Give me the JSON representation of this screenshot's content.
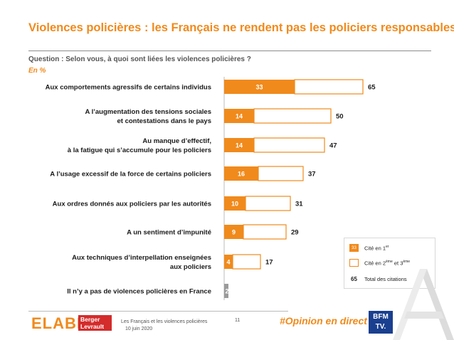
{
  "header": {
    "title": "Violences policières : les Français ne rendent pas les policiers responsables",
    "question": "Question : Selon vous, à quoi sont liées les violences policières ?",
    "unit": "En %"
  },
  "chart_data": {
    "type": "bar",
    "orientation": "horizontal",
    "stacked": true,
    "categories": [
      [
        "Aux comportements agressifs de certains individus"
      ],
      [
        "A l’augmentation des tensions sociales",
        "et contestations dans le pays"
      ],
      [
        "Au manque d’effectif,",
        "à la fatigue qui s’accumule pour les policiers"
      ],
      [
        "A l’usage excessif de la force de certains policiers"
      ],
      [
        "Aux ordres donnés aux policiers par les autorités"
      ],
      [
        "A un sentiment d’impunité"
      ],
      [
        "Aux techniques d’interpellation enseignées",
        "aux policiers"
      ],
      [
        "Il n’y a pas de violences policières en France"
      ]
    ],
    "series": [
      {
        "name": "Cité en 1er",
        "values": [
          33,
          14,
          14,
          16,
          10,
          9,
          4,
          2
        ],
        "color": "#f08a1c",
        "fill": "solid"
      },
      {
        "name": "Cité en 2ème et 3ème",
        "values": [
          32,
          36,
          33,
          21,
          21,
          20,
          13,
          0
        ],
        "color": "#f08a1c",
        "fill": "outline"
      }
    ],
    "totals": [
      65,
      50,
      47,
      37,
      31,
      29,
      17,
      null
    ],
    "legend_position": "bottom-right",
    "grid": false
  },
  "legend": {
    "first_sample": "33",
    "first_label": "Cité en 1er",
    "second_label": "Cité en 2ème et 3ème",
    "total_sample": "65",
    "total_label": "Total des citations"
  },
  "footer": {
    "logo_elabe": "ELABE",
    "logo_bl": "Berger Levrault",
    "study": "Les Français et les violences policières",
    "date": "10 juin 2020",
    "page": "11",
    "hashtag": "#Opinion en direct",
    "logo_bfm": "BFM TV."
  },
  "colors": {
    "accent": "#f08a1c",
    "secondary_bar_fill": "#ffffff",
    "text": "#1a1a1a"
  }
}
